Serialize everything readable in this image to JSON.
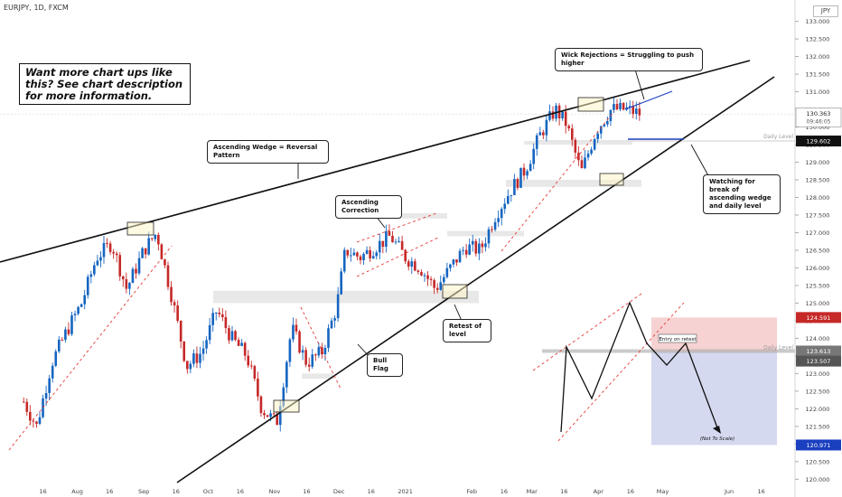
{
  "header": {
    "symbol": "EURJPY, 1D, FXCM",
    "currency_badge": "JPY"
  },
  "promo_box": {
    "text": "Want more chart ups like this? See chart description for more information."
  },
  "annotations": {
    "ascending_wedge": "Ascending Wedge = Reversal Pattern",
    "ascending_correction": "Ascending Correction",
    "retest": "Retest of level",
    "bull_flag": "Bull Flag",
    "wick_rejections": "Wick Rejections = Struggling to push higher",
    "watching": "Watching for break of ascending wedge and daily level",
    "entry": "Entry on retest",
    "not_to_scale": "(Not To Scale)",
    "daily_level_1": "Daily Level",
    "daily_level_2": "Daily Level"
  },
  "price_tags": {
    "current": "130.363",
    "countdown": "09:46:05",
    "daily_level_upper": "129.602",
    "stop": "124.591",
    "entry": "123.613",
    "retest_level": "123.507",
    "target": "120.971"
  },
  "colors": {
    "bull": "#1565c0",
    "bear": "#c62828",
    "stop_zone": "#f6d2d2",
    "target_zone": "#d4d9f0",
    "trendline": "#111111",
    "channel_dash": "#e53935",
    "wick_line": "#1a3fbf"
  },
  "chart_data": {
    "type": "candlestick",
    "title": "EURJPY, 1D, FXCM",
    "ylim": [
      119.7,
      133.4
    ],
    "y_ticks": [
      "120.000",
      "120.500",
      "121.000",
      "121.500",
      "122.000",
      "122.500",
      "123.000",
      "123.500",
      "124.000",
      "124.500",
      "125.000",
      "125.500",
      "126.000",
      "126.500",
      "127.000",
      "127.500",
      "128.000",
      "128.500",
      "129.000",
      "129.500",
      "130.000",
      "130.500",
      "131.000",
      "131.500",
      "132.000",
      "132.500",
      "133.000"
    ],
    "x_ticks": [
      "16",
      "Aug",
      "16",
      "Sep",
      "16",
      "Oct",
      "16",
      "Nov",
      "16",
      "Dec",
      "16",
      "2021",
      "Feb",
      "16",
      "Mar",
      "16",
      "Apr",
      "16",
      "May",
      "Jun",
      "16"
    ],
    "price_path": [
      [
        "2020-07-07",
        122.2
      ],
      [
        "2020-07-13",
        121.5
      ],
      [
        "2020-07-20",
        123.3
      ],
      [
        "2020-07-27",
        124.2
      ],
      [
        "2020-08-03",
        125.0
      ],
      [
        "2020-08-10",
        126.3
      ],
      [
        "2020-08-17",
        126.7
      ],
      [
        "2020-08-24",
        125.4
      ],
      [
        "2020-09-01",
        126.5
      ],
      [
        "2020-09-07",
        127.0
      ],
      [
        "2020-09-14",
        125.2
      ],
      [
        "2020-09-21",
        123.2
      ],
      [
        "2020-09-28",
        123.6
      ],
      [
        "2020-10-05",
        124.8
      ],
      [
        "2020-10-12",
        124.0
      ],
      [
        "2020-10-19",
        123.5
      ],
      [
        "2020-10-26",
        122.0
      ],
      [
        "2020-11-02",
        121.6
      ],
      [
        "2020-11-09",
        124.3
      ],
      [
        "2020-11-16",
        123.3
      ],
      [
        "2020-11-23",
        123.6
      ],
      [
        "2020-11-30",
        124.9
      ],
      [
        "2020-12-04",
        126.5
      ],
      [
        "2020-12-11",
        126.3
      ],
      [
        "2020-12-18",
        126.6
      ],
      [
        "2020-12-25",
        126.9
      ],
      [
        "2021-01-01",
        126.3
      ],
      [
        "2021-01-08",
        126.0
      ],
      [
        "2021-01-15",
        125.4
      ],
      [
        "2021-01-22",
        126.0
      ],
      [
        "2021-01-29",
        126.6
      ],
      [
        "2021-02-05",
        126.5
      ],
      [
        "2021-02-12",
        127.5
      ],
      [
        "2021-02-19",
        128.2
      ],
      [
        "2021-02-26",
        128.8
      ],
      [
        "2021-03-05",
        129.8
      ],
      [
        "2021-03-12",
        130.5
      ],
      [
        "2021-03-17",
        130.1
      ],
      [
        "2021-03-24",
        128.7
      ],
      [
        "2021-03-31",
        129.9
      ],
      [
        "2021-04-07",
        130.5
      ],
      [
        "2021-04-14",
        130.5
      ],
      [
        "2021-04-21",
        130.363
      ]
    ],
    "levels": {
      "daily_level_upper": 129.602,
      "stop_loss": 124.591,
      "entry": 123.613,
      "target": 120.971
    },
    "legend": "none",
    "grid": false
  }
}
